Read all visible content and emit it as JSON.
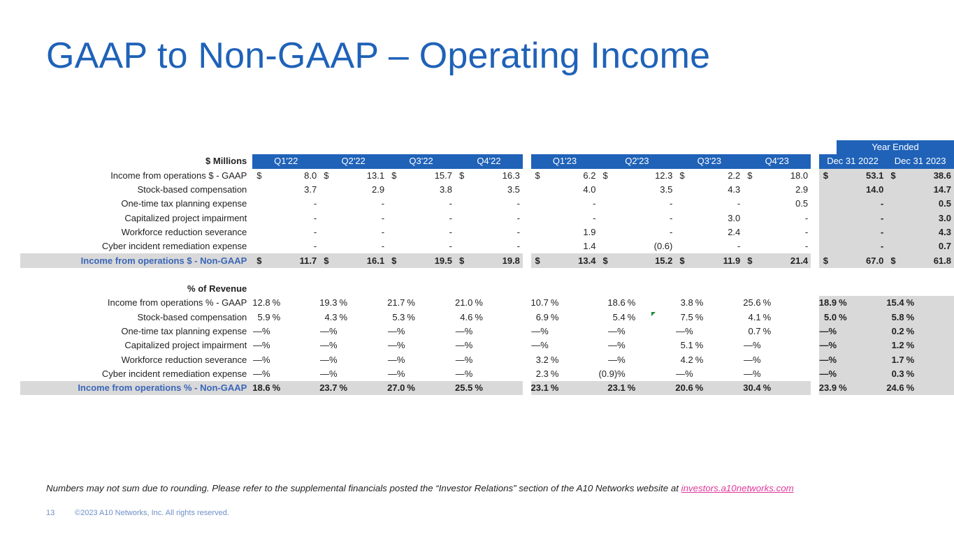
{
  "title": "GAAP to Non-GAAP – Operating Income",
  "table": {
    "year_ended": "Year Ended",
    "units_label": "$ Millions",
    "pct_section_label": "% of Revenue",
    "columns": [
      "Q1'22",
      "Q2'22",
      "Q3'22",
      "Q4'22",
      "Q1'23",
      "Q2'23",
      "Q3'23",
      "Q4'23",
      "Dec 31 2022",
      "Dec 31 2023"
    ],
    "dollar_rows": [
      {
        "label": "Income from operations $ - GAAP",
        "values": [
          "8.0",
          "13.1",
          "15.7",
          "16.3",
          "6.2",
          "12.3",
          "2.2",
          "18.0",
          "53.1",
          "38.6"
        ],
        "dollar": true
      },
      {
        "label": "Stock-based compensation",
        "values": [
          "3.7",
          "2.9",
          "3.8",
          "3.5",
          "4.0",
          "3.5",
          "4.3",
          "2.9",
          "14.0",
          "14.7"
        ]
      },
      {
        "label": "One-time tax planning expense",
        "values": [
          "-",
          "-",
          "-",
          "-",
          "-",
          "-",
          "-",
          "0.5",
          "-",
          "0.5"
        ]
      },
      {
        "label": "Capitalized project impairment",
        "values": [
          "-",
          "-",
          "-",
          "-",
          "-",
          "-",
          "3.0",
          "-",
          "-",
          "3.0"
        ]
      },
      {
        "label": "Workforce reduction severance",
        "values": [
          "-",
          "-",
          "-",
          "-",
          "1.9",
          "-",
          "2.4",
          "-",
          "-",
          "4.3"
        ]
      },
      {
        "label": "Cyber incident remediation expense",
        "values": [
          "-",
          "-",
          "-",
          "-",
          "1.4",
          "(0.6)",
          "-",
          "-",
          "-",
          "0.7"
        ]
      },
      {
        "label": "Income from operations $ - Non-GAAP",
        "values": [
          "11.7",
          "16.1",
          "19.5",
          "19.8",
          "13.4",
          "15.2",
          "11.9",
          "21.4",
          "67.0",
          "61.8"
        ],
        "dollar": true,
        "total": true
      }
    ],
    "pct_rows": [
      {
        "label": "Income from operations % - GAAP",
        "values": [
          "12.8",
          "19.3",
          "21.7",
          "21.0",
          "10.7",
          "18.6",
          "3.8",
          "25.6",
          "18.9",
          "15.4"
        ]
      },
      {
        "label": "Stock-based compensation",
        "values": [
          "5.9",
          "4.3",
          "5.3",
          "4.6",
          "6.9",
          "5.4",
          "7.5",
          "4.1",
          "5.0",
          "5.8"
        ]
      },
      {
        "label": "One-time tax planning expense",
        "values": [
          "—%",
          "—%",
          "—%",
          "—%",
          "—%",
          "—%",
          "—%",
          "0.7",
          "—%",
          "0.2"
        ]
      },
      {
        "label": "Capitalized project impairment",
        "values": [
          "—%",
          "—%",
          "—%",
          "—%",
          "—%",
          "—%",
          "5.1",
          "—%",
          "—%",
          "1.2"
        ]
      },
      {
        "label": "Workforce reduction severance",
        "values": [
          "—%",
          "—%",
          "—%",
          "—%",
          "3.2",
          "—%",
          "4.2",
          "—%",
          "—%",
          "1.7"
        ]
      },
      {
        "label": "Cyber incident remediation expense",
        "values": [
          "—%",
          "—%",
          "—%",
          "—%",
          "2.3",
          "(0.9)%",
          "—%",
          "—%",
          "—%",
          "0.3"
        ]
      },
      {
        "label": "Income from operations % - Non-GAAP",
        "values": [
          "18.6",
          "23.7",
          "27.0",
          "25.5",
          "23.1",
          "23.1",
          "20.6",
          "30.4",
          "23.9",
          "24.6"
        ],
        "total": true
      }
    ]
  },
  "footnote": {
    "text": "Numbers may not sum due to rounding. Please refer to the supplemental financials posted the “Investor Relations” section of the A10 Networks website at ",
    "link": "investors.a10networks.com"
  },
  "footer": {
    "page_number": "13",
    "copyright": "©2023 A10 Networks, Inc. All rights reserved."
  }
}
